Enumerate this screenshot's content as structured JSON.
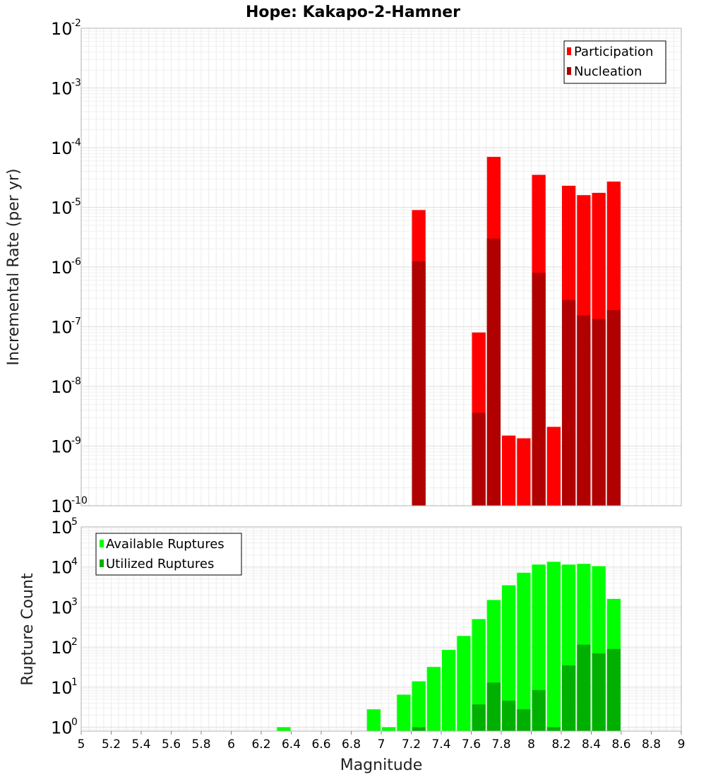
{
  "chart_data": [
    {
      "id": "rate",
      "type": "bar",
      "title": "Hope: Kakapo-2-Hamner",
      "xlabel": "",
      "ylabel": "Incremental Rate (per yr)",
      "yscale": "log",
      "xlim": [
        5,
        9
      ],
      "ylim": [
        1e-10,
        0.01
      ],
      "y_ticks": [
        {
          "base": "10",
          "exp": "-10",
          "value": 1e-10
        },
        {
          "base": "10",
          "exp": "-9",
          "value": 1e-09
        },
        {
          "base": "10",
          "exp": "-8",
          "value": 1e-08
        },
        {
          "base": "10",
          "exp": "-7",
          "value": 1e-07
        },
        {
          "base": "10",
          "exp": "-6",
          "value": 1e-06
        },
        {
          "base": "10",
          "exp": "-5",
          "value": 1e-05
        },
        {
          "base": "10",
          "exp": "-4",
          "value": 0.0001
        },
        {
          "base": "10",
          "exp": "-3",
          "value": 0.001
        },
        {
          "base": "10",
          "exp": "-2",
          "value": 0.01
        }
      ],
      "bin_width": 0.1,
      "grid": true,
      "legend_position": "top-right",
      "series": [
        {
          "name": "Participation",
          "color": "#ff0000",
          "points": [
            {
              "x": 7.25,
              "y": 9e-06
            },
            {
              "x": 7.65,
              "y": 8e-08
            },
            {
              "x": 7.75,
              "y": 7e-05
            },
            {
              "x": 7.85,
              "y": 1.5e-09
            },
            {
              "x": 7.95,
              "y": 1.35e-09
            },
            {
              "x": 8.05,
              "y": 3.5e-05
            },
            {
              "x": 8.15,
              "y": 2.1e-09
            },
            {
              "x": 8.25,
              "y": 2.3e-05
            },
            {
              "x": 8.35,
              "y": 1.6e-05
            },
            {
              "x": 8.45,
              "y": 1.75e-05
            },
            {
              "x": 8.55,
              "y": 2.7e-05
            }
          ]
        },
        {
          "name": "Nucleation",
          "color": "#b00000",
          "points": [
            {
              "x": 7.25,
              "y": 1.25e-06
            },
            {
              "x": 7.65,
              "y": 3.6e-09
            },
            {
              "x": 7.75,
              "y": 3e-06
            },
            {
              "x": 8.05,
              "y": 8e-07
            },
            {
              "x": 8.25,
              "y": 2.8e-07
            },
            {
              "x": 8.35,
              "y": 1.55e-07
            },
            {
              "x": 8.45,
              "y": 1.35e-07
            },
            {
              "x": 8.55,
              "y": 1.9e-07
            }
          ]
        }
      ]
    },
    {
      "id": "count",
      "type": "bar",
      "title": "",
      "xlabel": "Magnitude",
      "ylabel": "Rupture Count",
      "yscale": "log",
      "xlim": [
        5,
        9
      ],
      "ylim": [
        0.8,
        100000
      ],
      "x_ticks": [
        "5",
        "5.2",
        "5.4",
        "5.6",
        "5.8",
        "6",
        "6.2",
        "6.4",
        "6.6",
        "6.8",
        "7",
        "7.2",
        "7.4",
        "7.6",
        "7.8",
        "8",
        "8.2",
        "8.4",
        "8.6",
        "8.8",
        "9"
      ],
      "y_ticks": [
        {
          "base": "10",
          "exp": "0",
          "value": 1
        },
        {
          "base": "10",
          "exp": "1",
          "value": 10
        },
        {
          "base": "10",
          "exp": "2",
          "value": 100
        },
        {
          "base": "10",
          "exp": "3",
          "value": 1000
        },
        {
          "base": "10",
          "exp": "4",
          "value": 10000
        },
        {
          "base": "10",
          "exp": "5",
          "value": 100000
        }
      ],
      "bin_width": 0.1,
      "grid": true,
      "legend_position": "top-left",
      "series": [
        {
          "name": "Available Ruptures",
          "color": "#00ff00",
          "points": [
            {
              "x": 6.35,
              "y": 1.0
            },
            {
              "x": 6.95,
              "y": 2.8
            },
            {
              "x": 7.05,
              "y": 1.0
            },
            {
              "x": 7.15,
              "y": 6.5
            },
            {
              "x": 7.25,
              "y": 14
            },
            {
              "x": 7.35,
              "y": 32
            },
            {
              "x": 7.45,
              "y": 85
            },
            {
              "x": 7.55,
              "y": 190
            },
            {
              "x": 7.65,
              "y": 500
            },
            {
              "x": 7.75,
              "y": 1500
            },
            {
              "x": 7.85,
              "y": 3500
            },
            {
              "x": 7.95,
              "y": 7200
            },
            {
              "x": 8.05,
              "y": 11500
            },
            {
              "x": 8.15,
              "y": 13500
            },
            {
              "x": 8.25,
              "y": 11500
            },
            {
              "x": 8.35,
              "y": 12000
            },
            {
              "x": 8.45,
              "y": 10500
            },
            {
              "x": 8.55,
              "y": 1600
            }
          ]
        },
        {
          "name": "Utilized Ruptures",
          "color": "#00b000",
          "points": [
            {
              "x": 7.25,
              "y": 1.0
            },
            {
              "x": 7.65,
              "y": 3.7
            },
            {
              "x": 7.75,
              "y": 13
            },
            {
              "x": 7.85,
              "y": 4.6
            },
            {
              "x": 7.95,
              "y": 2.8
            },
            {
              "x": 8.05,
              "y": 8.5
            },
            {
              "x": 8.15,
              "y": 1.0
            },
            {
              "x": 8.25,
              "y": 35
            },
            {
              "x": 8.35,
              "y": 115
            },
            {
              "x": 8.45,
              "y": 70
            },
            {
              "x": 8.55,
              "y": 90
            }
          ]
        }
      ]
    }
  ]
}
